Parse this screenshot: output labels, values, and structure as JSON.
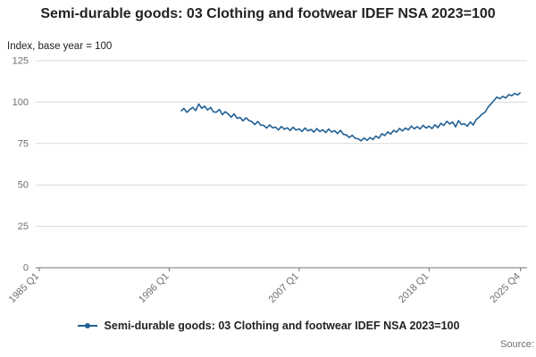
{
  "header": {
    "title": "Semi-durable goods: 03 Clothing and footwear IDEF NSA 2023=100"
  },
  "axis_note": "Index, base year = 100",
  "legend": {
    "label": "Semi-durable goods: 03 Clothing and footwear IDEF NSA 2023=100"
  },
  "footer": {
    "source_label": "Source:"
  },
  "colors": {
    "line": "#206095",
    "grid": "#d9d9d9",
    "axis": "#707071",
    "tick_text": "#707071"
  },
  "chart_data": {
    "type": "line",
    "title": "Semi-durable goods: 03 Clothing and footwear IDEF NSA 2023=100",
    "xlabel": "",
    "ylabel": "Index, base year = 100",
    "grid": true,
    "legend_position": "bottom",
    "line_color": "#206095",
    "ylim": [
      0,
      125
    ],
    "yticks": [
      0,
      25,
      50,
      75,
      100,
      125
    ],
    "xlim": [
      1984.7,
      2026.3
    ],
    "xticks": [
      {
        "value": 1985.0,
        "label": "1985 Q1"
      },
      {
        "value": 1996.0,
        "label": "1996 Q1"
      },
      {
        "value": 2007.0,
        "label": "2007 Q1"
      },
      {
        "value": 2018.0,
        "label": "2018 Q1"
      },
      {
        "value": 2025.75,
        "label": "2025 Q4"
      }
    ],
    "series": [
      {
        "name": "Semi-durable goods: 03 Clothing and footwear IDEF NSA 2023=100",
        "points": [
          [
            1997.0,
            94.5
          ],
          [
            1997.25,
            96.2
          ],
          [
            1997.5,
            93.8
          ],
          [
            1997.75,
            95.5
          ],
          [
            1998.0,
            96.8
          ],
          [
            1998.25,
            94.9
          ],
          [
            1998.5,
            98.9
          ],
          [
            1998.75,
            96.3
          ],
          [
            1999.0,
            97.5
          ],
          [
            1999.25,
            95.2
          ],
          [
            1999.5,
            96.8
          ],
          [
            1999.75,
            94.1
          ],
          [
            2000.0,
            93.9
          ],
          [
            2000.25,
            95.6
          ],
          [
            2000.5,
            92.4
          ],
          [
            2000.75,
            94.2
          ],
          [
            2001.0,
            92.8
          ],
          [
            2001.25,
            90.9
          ],
          [
            2001.5,
            92.9
          ],
          [
            2001.75,
            90.2
          ],
          [
            2002.0,
            90.8
          ],
          [
            2002.25,
            88.7
          ],
          [
            2002.5,
            90.5
          ],
          [
            2002.75,
            88.9
          ],
          [
            2003.0,
            88.2
          ],
          [
            2003.25,
            86.5
          ],
          [
            2003.5,
            88.3
          ],
          [
            2003.75,
            86.1
          ],
          [
            2004.0,
            86.0
          ],
          [
            2004.25,
            84.3
          ],
          [
            2004.5,
            86.2
          ],
          [
            2004.75,
            84.5
          ],
          [
            2005.0,
            84.9
          ],
          [
            2005.25,
            83.2
          ],
          [
            2005.5,
            85.3
          ],
          [
            2005.75,
            83.6
          ],
          [
            2006.0,
            84.5
          ],
          [
            2006.25,
            82.9
          ],
          [
            2006.5,
            84.8
          ],
          [
            2006.75,
            83.1
          ],
          [
            2007.0,
            83.9
          ],
          [
            2007.25,
            82.3
          ],
          [
            2007.5,
            84.4
          ],
          [
            2007.75,
            82.6
          ],
          [
            2008.0,
            83.5
          ],
          [
            2008.25,
            81.9
          ],
          [
            2008.5,
            84.0
          ],
          [
            2008.75,
            82.2
          ],
          [
            2009.0,
            83.3
          ],
          [
            2009.25,
            81.6
          ],
          [
            2009.5,
            83.8
          ],
          [
            2009.75,
            81.9
          ],
          [
            2010.0,
            82.8
          ],
          [
            2010.25,
            81.0
          ],
          [
            2010.5,
            83.0
          ],
          [
            2010.75,
            80.5
          ],
          [
            2011.0,
            80.2
          ],
          [
            2011.25,
            78.6
          ],
          [
            2011.5,
            80.0
          ],
          [
            2011.75,
            78.1
          ],
          [
            2012.0,
            77.9
          ],
          [
            2012.25,
            76.6
          ],
          [
            2012.5,
            78.4
          ],
          [
            2012.75,
            76.9
          ],
          [
            2013.0,
            78.6
          ],
          [
            2013.25,
            77.4
          ],
          [
            2013.5,
            79.5
          ],
          [
            2013.75,
            78.2
          ],
          [
            2014.0,
            80.9
          ],
          [
            2014.25,
            79.8
          ],
          [
            2014.5,
            82.0
          ],
          [
            2014.75,
            80.7
          ],
          [
            2015.0,
            82.9
          ],
          [
            2015.25,
            81.8
          ],
          [
            2015.5,
            84.1
          ],
          [
            2015.75,
            82.6
          ],
          [
            2016.0,
            84.4
          ],
          [
            2016.25,
            83.2
          ],
          [
            2016.5,
            85.5
          ],
          [
            2016.75,
            83.9
          ],
          [
            2017.0,
            85.2
          ],
          [
            2017.25,
            83.8
          ],
          [
            2017.5,
            86.0
          ],
          [
            2017.75,
            84.3
          ],
          [
            2018.0,
            85.5
          ],
          [
            2018.25,
            84.0
          ],
          [
            2018.5,
            86.3
          ],
          [
            2018.75,
            84.6
          ],
          [
            2019.0,
            87.2
          ],
          [
            2019.25,
            85.9
          ],
          [
            2019.5,
            88.4
          ],
          [
            2019.75,
            86.8
          ],
          [
            2020.0,
            88.0
          ],
          [
            2020.25,
            85.0
          ],
          [
            2020.5,
            88.8
          ],
          [
            2020.75,
            86.5
          ],
          [
            2021.0,
            86.9
          ],
          [
            2021.25,
            85.4
          ],
          [
            2021.5,
            88.0
          ],
          [
            2021.75,
            86.2
          ],
          [
            2022.0,
            89.5
          ],
          [
            2022.25,
            91.0
          ],
          [
            2022.5,
            92.8
          ],
          [
            2022.75,
            94.0
          ],
          [
            2023.0,
            97.0
          ],
          [
            2023.25,
            99.0
          ],
          [
            2023.5,
            101.0
          ],
          [
            2023.75,
            103.0
          ],
          [
            2024.0,
            102.0
          ],
          [
            2024.25,
            103.5
          ],
          [
            2024.5,
            102.5
          ],
          [
            2024.75,
            104.5
          ],
          [
            2025.0,
            103.8
          ],
          [
            2025.25,
            105.2
          ],
          [
            2025.5,
            104.3
          ],
          [
            2025.75,
            105.8
          ]
        ]
      }
    ]
  }
}
